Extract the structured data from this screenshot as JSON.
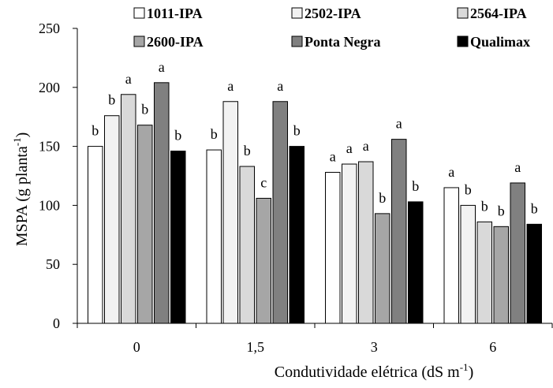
{
  "chart_data": {
    "type": "bar",
    "categories": [
      "0",
      "1,5",
      "3",
      "6"
    ],
    "xlabel_main": "Condutividade elétrica (dS m",
    "xlabel_sup": "-1",
    "xlabel_close": ")",
    "ylabel_main": "MSPA (g planta",
    "ylabel_sup": "-1",
    "ylabel_close": ")",
    "ylim": [
      0,
      250
    ],
    "yticks": [
      "0",
      "50",
      "100",
      "150",
      "200",
      "250"
    ],
    "grid": false,
    "legend_position": "top",
    "series": [
      {
        "name": "1011-IPA",
        "color": "#ffffff",
        "values": [
          150,
          147,
          128,
          115
        ],
        "letters": [
          "b",
          "b",
          "a",
          "a"
        ]
      },
      {
        "name": "2502-IPA",
        "color": "#f2f2f2",
        "values": [
          176,
          188,
          135,
          100
        ],
        "letters": [
          "b",
          "a",
          "a",
          "b"
        ]
      },
      {
        "name": "2564-IPA",
        "color": "#d9d9d9",
        "values": [
          194,
          133,
          137,
          86
        ],
        "letters": [
          "a",
          "b",
          "a",
          "b"
        ]
      },
      {
        "name": "2600-IPA",
        "color": "#a6a6a6",
        "values": [
          168,
          106,
          93,
          82
        ],
        "letters": [
          "b",
          "c",
          "b",
          "b"
        ]
      },
      {
        "name": "Ponta Negra",
        "color": "#808080",
        "values": [
          204,
          188,
          156,
          119
        ],
        "letters": [
          "a",
          "a",
          "a",
          "a"
        ]
      },
      {
        "name": "Qualimax",
        "color": "#000000",
        "values": [
          146,
          150,
          103,
          84
        ],
        "letters": [
          "b",
          "b",
          "b",
          "b"
        ]
      }
    ]
  }
}
